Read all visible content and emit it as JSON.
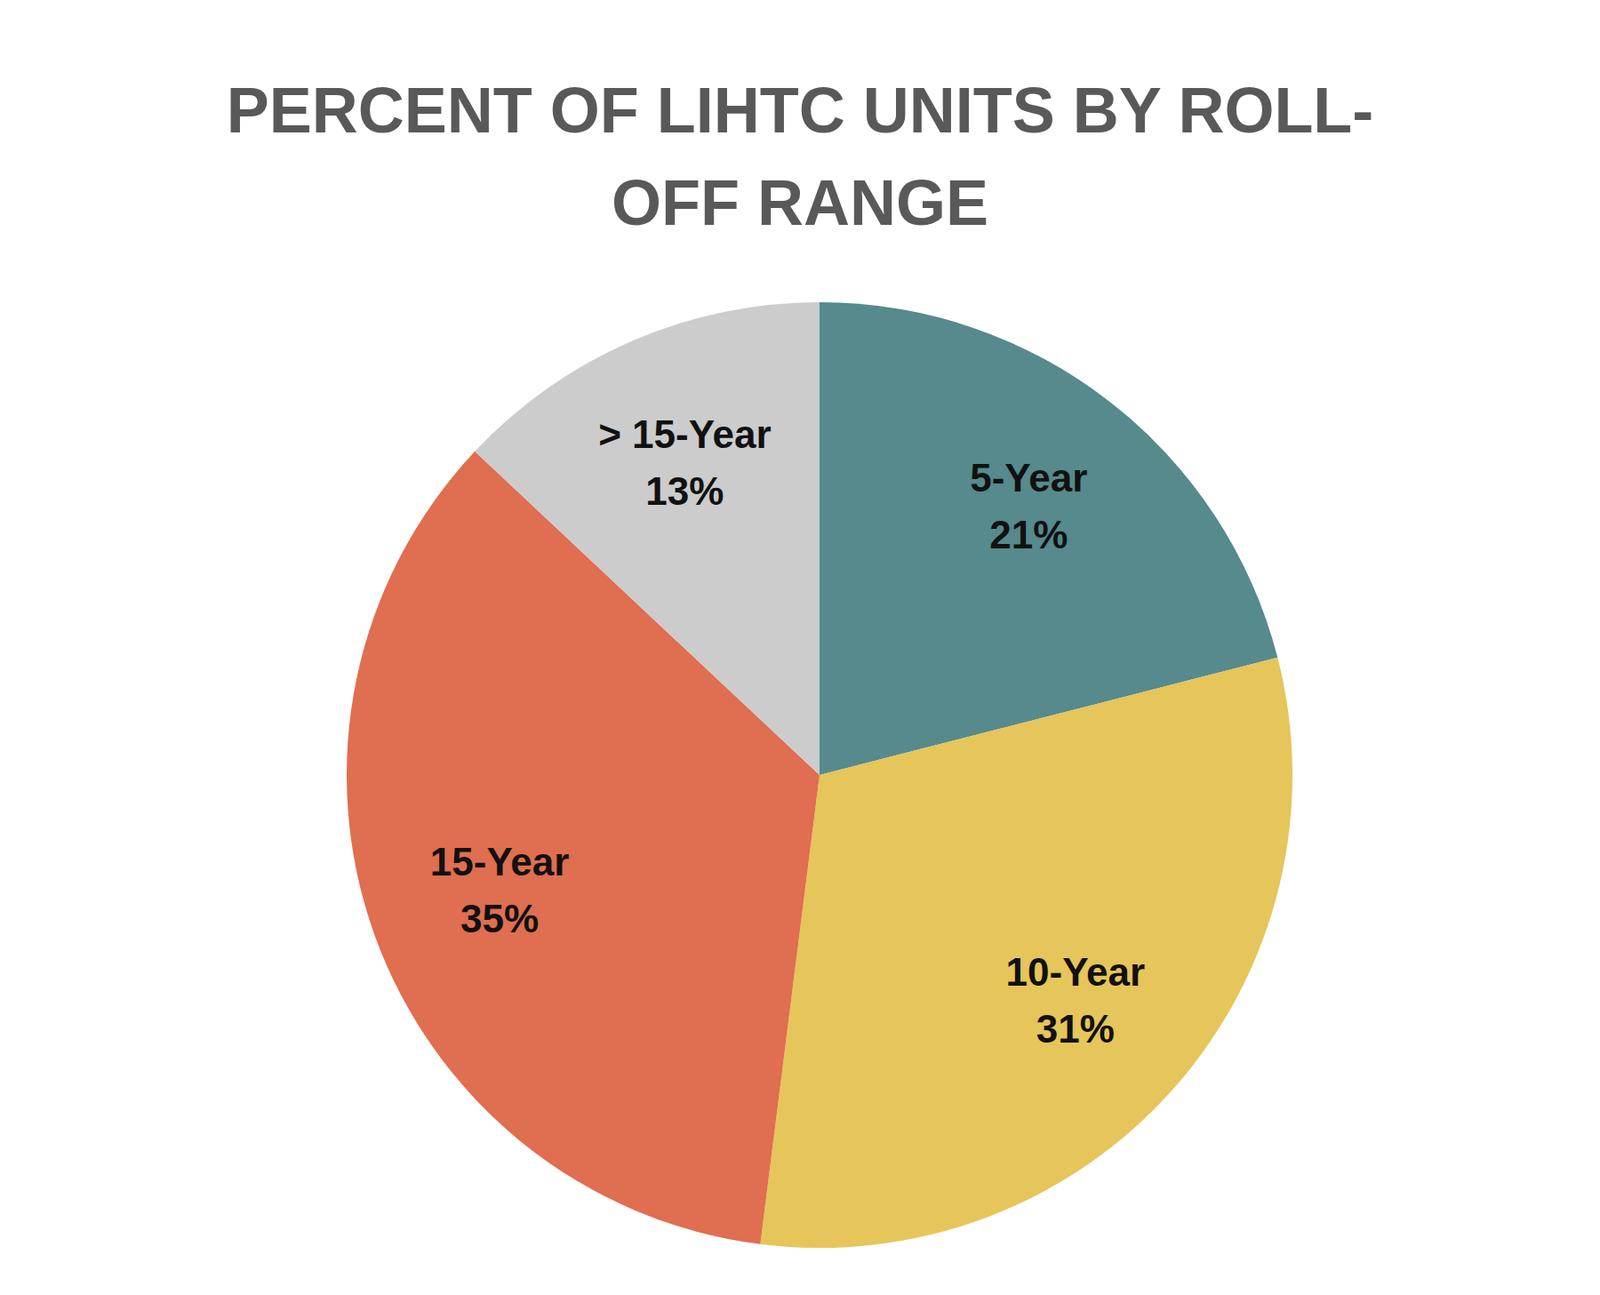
{
  "chart_data": {
    "type": "pie",
    "title": "PERCENT OF LIHTC UNITS BY ROLL-OFF RANGE",
    "categories": [
      "5-Year",
      "10-Year",
      "15-Year",
      "> 15-Year"
    ],
    "values": [
      21,
      31,
      35,
      13
    ],
    "value_labels": [
      "21%",
      "31%",
      "35%",
      "13%"
    ],
    "colors": [
      "#568a8c",
      "#e6c55a",
      "#e06e50",
      "#cccccc"
    ],
    "data_labels": true
  }
}
